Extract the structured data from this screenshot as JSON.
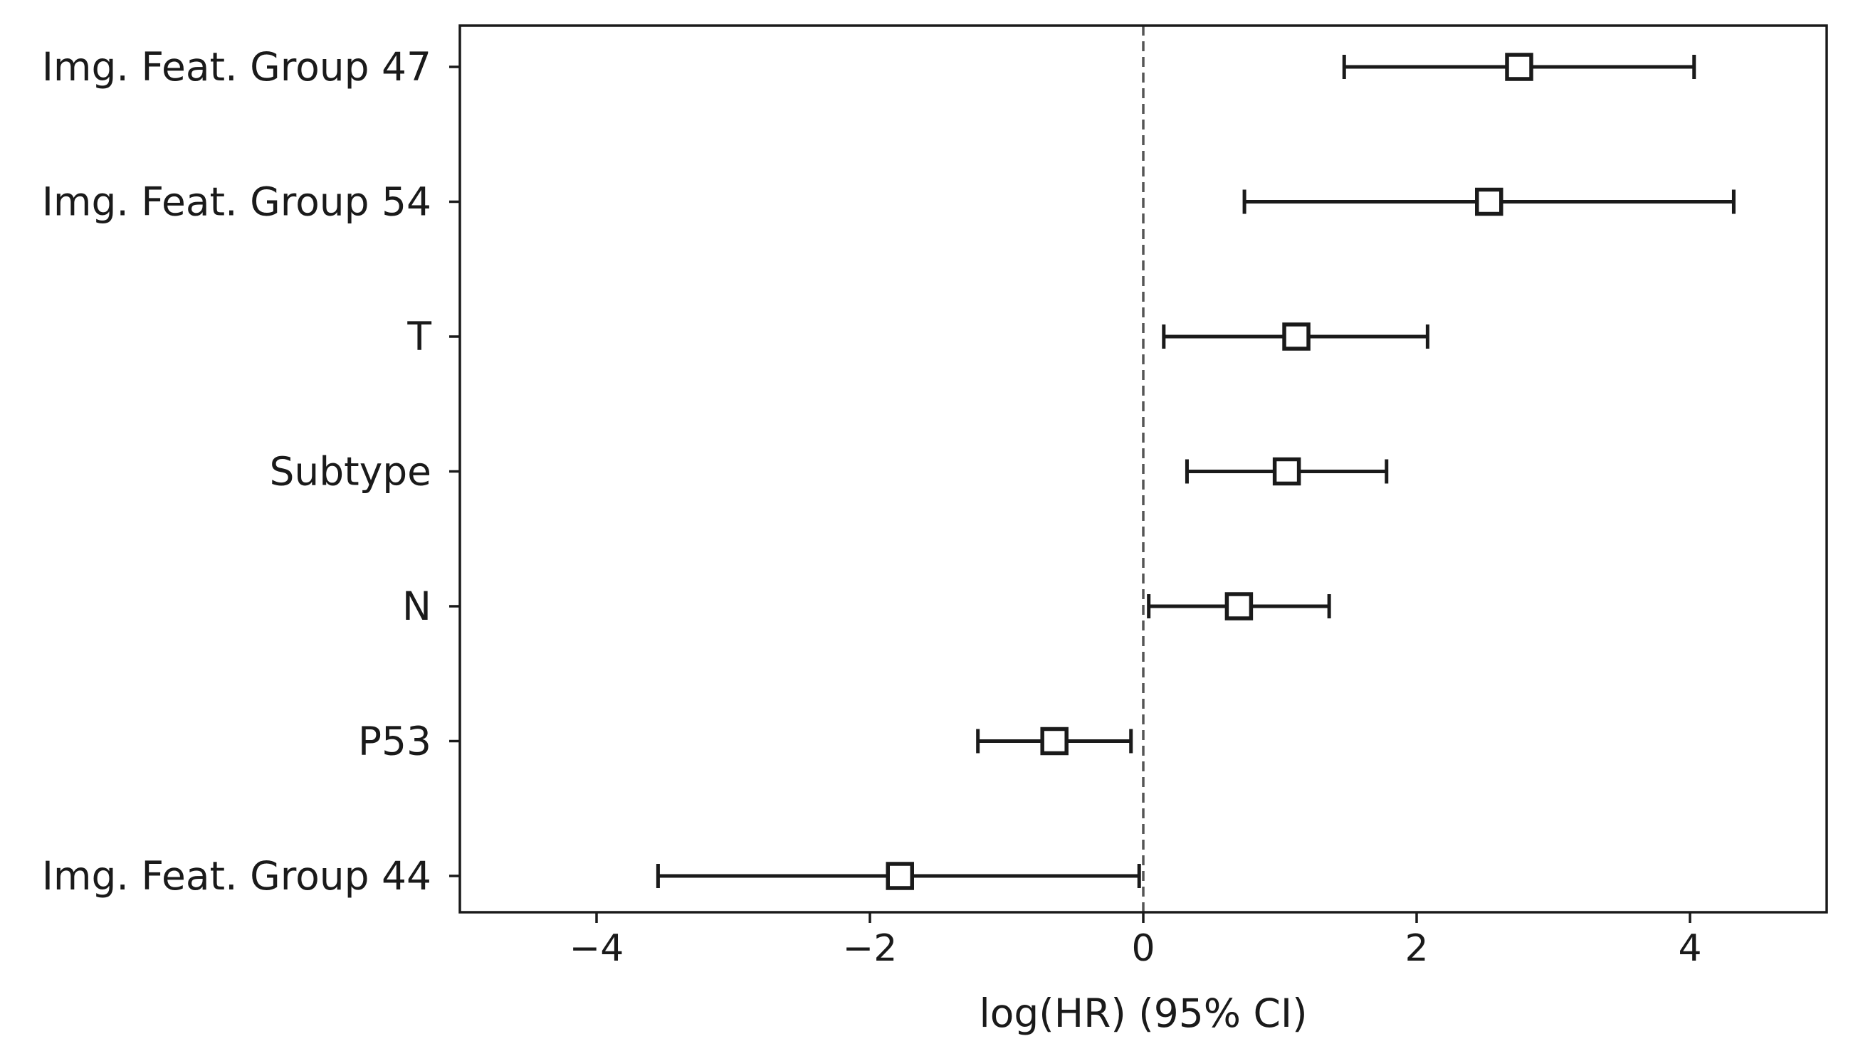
{
  "chart_data": {
    "type": "forest",
    "title": "",
    "xlabel": "log(HR) (95% CI)",
    "ylabel": "",
    "xlim": [
      -5,
      5
    ],
    "xticks": [
      -4,
      -2,
      0,
      2,
      4
    ],
    "xtick_labels": [
      "−4",
      "−2",
      "0",
      "2",
      "4"
    ],
    "reference_line": 0,
    "grid": false,
    "categories": [
      "Img. Feat. Group 47",
      "Img. Feat. Group 54",
      "T",
      "Subtype",
      "N",
      "P53",
      "Img. Feat. Group 44"
    ],
    "estimates": [
      2.75,
      2.53,
      1.12,
      1.05,
      0.7,
      -0.65,
      -1.78
    ],
    "ci_lower": [
      1.47,
      0.74,
      0.15,
      0.32,
      0.04,
      -1.21,
      -3.55
    ],
    "ci_upper": [
      4.03,
      4.32,
      2.08,
      1.78,
      1.36,
      -0.09,
      -0.03
    ]
  },
  "colors": {
    "marks": "#1a1a1a",
    "marker_fill": "#ffffff",
    "reference_line": "#555555"
  }
}
